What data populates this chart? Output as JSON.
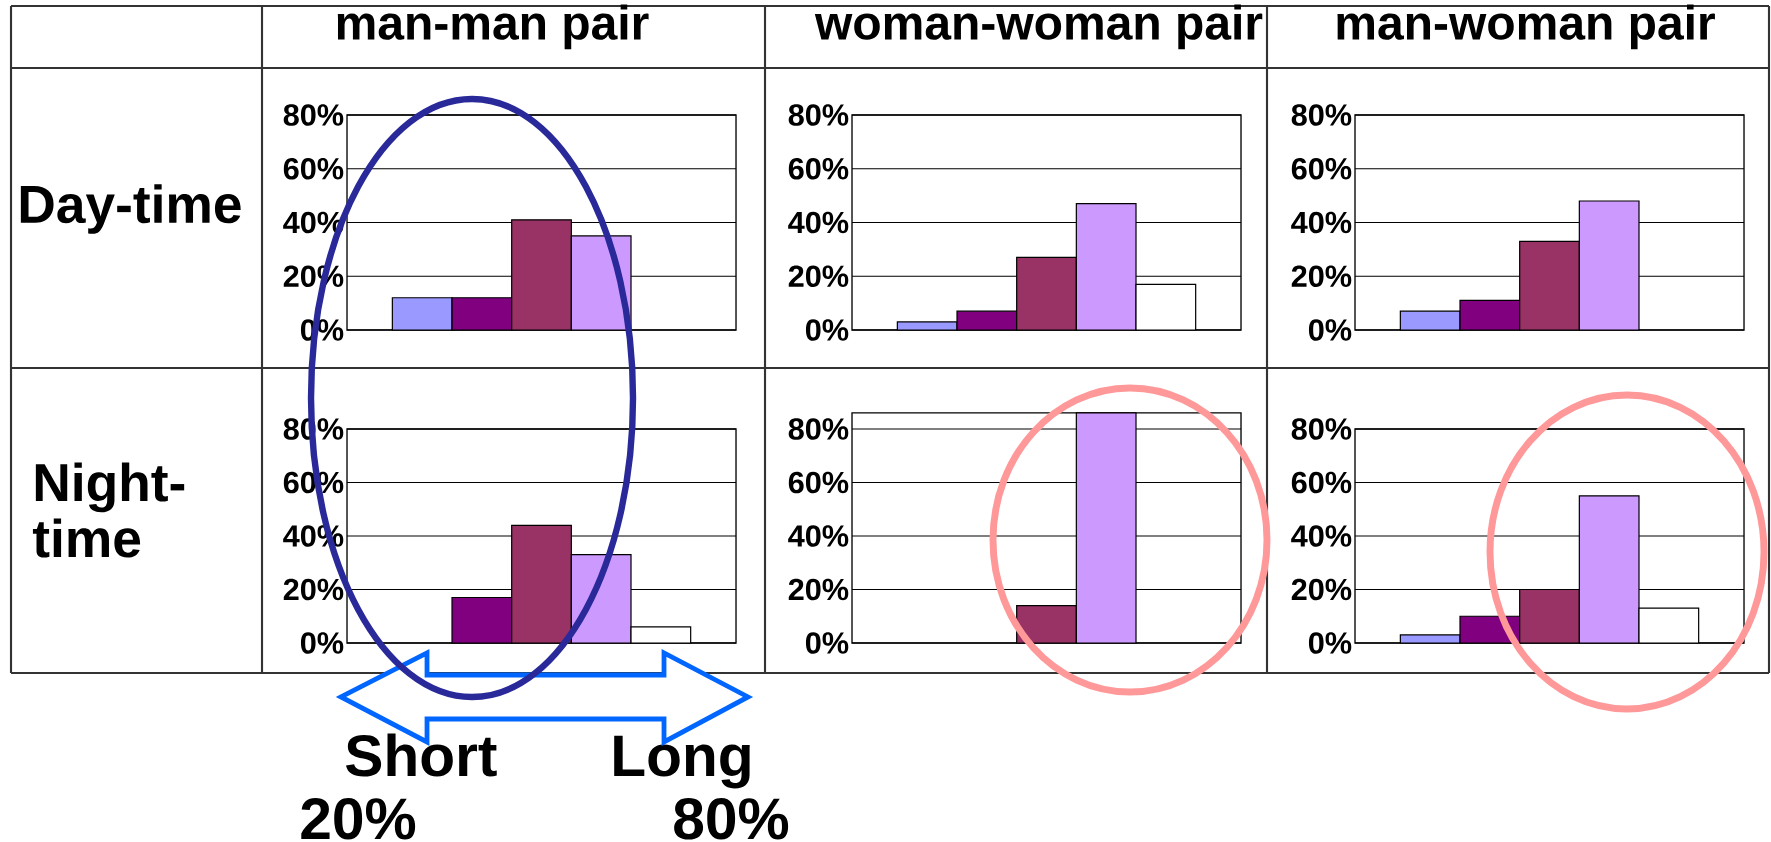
{
  "chart_data": [
    {
      "type": "bar",
      "title": "man-man pair",
      "ylabel": "Day-time",
      "categories": [
        null,
        null,
        null,
        null,
        null
      ],
      "values": [
        12,
        12,
        41,
        35,
        null
      ],
      "colors": [
        "#9999ff",
        "#800080",
        "#993366",
        "#cc99ff",
        "#ffffff"
      ],
      "ylim": [
        0,
        80
      ],
      "yticks": [
        {
          "value": 0,
          "label": "0%"
        },
        {
          "value": 20,
          "label": "20%"
        },
        {
          "value": 40,
          "label": "40%"
        },
        {
          "value": 60,
          "label": "60%"
        },
        {
          "value": 80,
          "label": "80%"
        }
      ],
      "grid": "y"
    },
    {
      "type": "bar",
      "title": "woman-woman pair",
      "categories": [
        null,
        null,
        null,
        null,
        null
      ],
      "values": [
        3,
        7,
        27,
        47,
        17
      ],
      "colors": [
        "#9999ff",
        "#800080",
        "#993366",
        "#cc99ff",
        "#ffffff"
      ],
      "ylim": [
        0,
        80
      ],
      "yticks": [
        {
          "value": 0,
          "label": "0%"
        },
        {
          "value": 20,
          "label": "20%"
        },
        {
          "value": 40,
          "label": "40%"
        },
        {
          "value": 60,
          "label": "60%"
        },
        {
          "value": 80,
          "label": "80%"
        }
      ],
      "grid": "y"
    },
    {
      "type": "bar",
      "title": "man-woman pair",
      "categories": [
        null,
        null,
        null,
        null,
        null
      ],
      "values": [
        7,
        11,
        33,
        48,
        null
      ],
      "colors": [
        "#9999ff",
        "#800080",
        "#993366",
        "#cc99ff",
        "#ffffff"
      ],
      "ylim": [
        0,
        80
      ],
      "yticks": [
        {
          "value": 0,
          "label": "0%"
        },
        {
          "value": 20,
          "label": "20%"
        },
        {
          "value": 40,
          "label": "40%"
        },
        {
          "value": 60,
          "label": "60%"
        },
        {
          "value": 80,
          "label": "80%"
        }
      ],
      "grid": "y"
    },
    {
      "type": "bar",
      "ylabel": "Night-time",
      "categories": [
        null,
        null,
        null,
        null,
        null
      ],
      "values": [
        null,
        17,
        44,
        33,
        6
      ],
      "colors": [
        "#9999ff",
        "#800080",
        "#993366",
        "#cc99ff",
        "#ffffff"
      ],
      "ylim": [
        0,
        80
      ],
      "yticks": [
        {
          "value": 0,
          "label": "0%"
        },
        {
          "value": 20,
          "label": "20%"
        },
        {
          "value": 40,
          "label": "40%"
        },
        {
          "value": 60,
          "label": "60%"
        },
        {
          "value": 80,
          "label": "80%"
        }
      ],
      "grid": "y",
      "annotations": [
        "Short",
        "Long",
        "20%",
        "80%"
      ]
    },
    {
      "type": "bar",
      "categories": [
        null,
        null,
        null,
        null,
        null
      ],
      "values": [
        null,
        null,
        14,
        86,
        null
      ],
      "colors": [
        "#9999ff",
        "#800080",
        "#993366",
        "#cc99ff",
        "#ffffff"
      ],
      "ylim": [
        0,
        86
      ],
      "yticks": [
        {
          "value": 0,
          "label": "0%"
        },
        {
          "value": 20,
          "label": "20%"
        },
        {
          "value": 40,
          "label": "40%"
        },
        {
          "value": 60,
          "label": "60%"
        },
        {
          "value": 80,
          "label": "80%"
        }
      ],
      "grid": "y"
    },
    {
      "type": "bar",
      "categories": [
        null,
        null,
        null,
        null,
        null
      ],
      "values": [
        3,
        10,
        20,
        55,
        13
      ],
      "colors": [
        "#9999ff",
        "#800080",
        "#993366",
        "#cc99ff",
        "#ffffff"
      ],
      "ylim": [
        0,
        80
      ],
      "yticks": [
        {
          "value": 0,
          "label": "0%"
        },
        {
          "value": 20,
          "label": "20%"
        },
        {
          "value": 40,
          "label": "40%"
        },
        {
          "value": 60,
          "label": "60%"
        },
        {
          "value": 80,
          "label": "80%"
        }
      ],
      "grid": "y"
    }
  ]
}
